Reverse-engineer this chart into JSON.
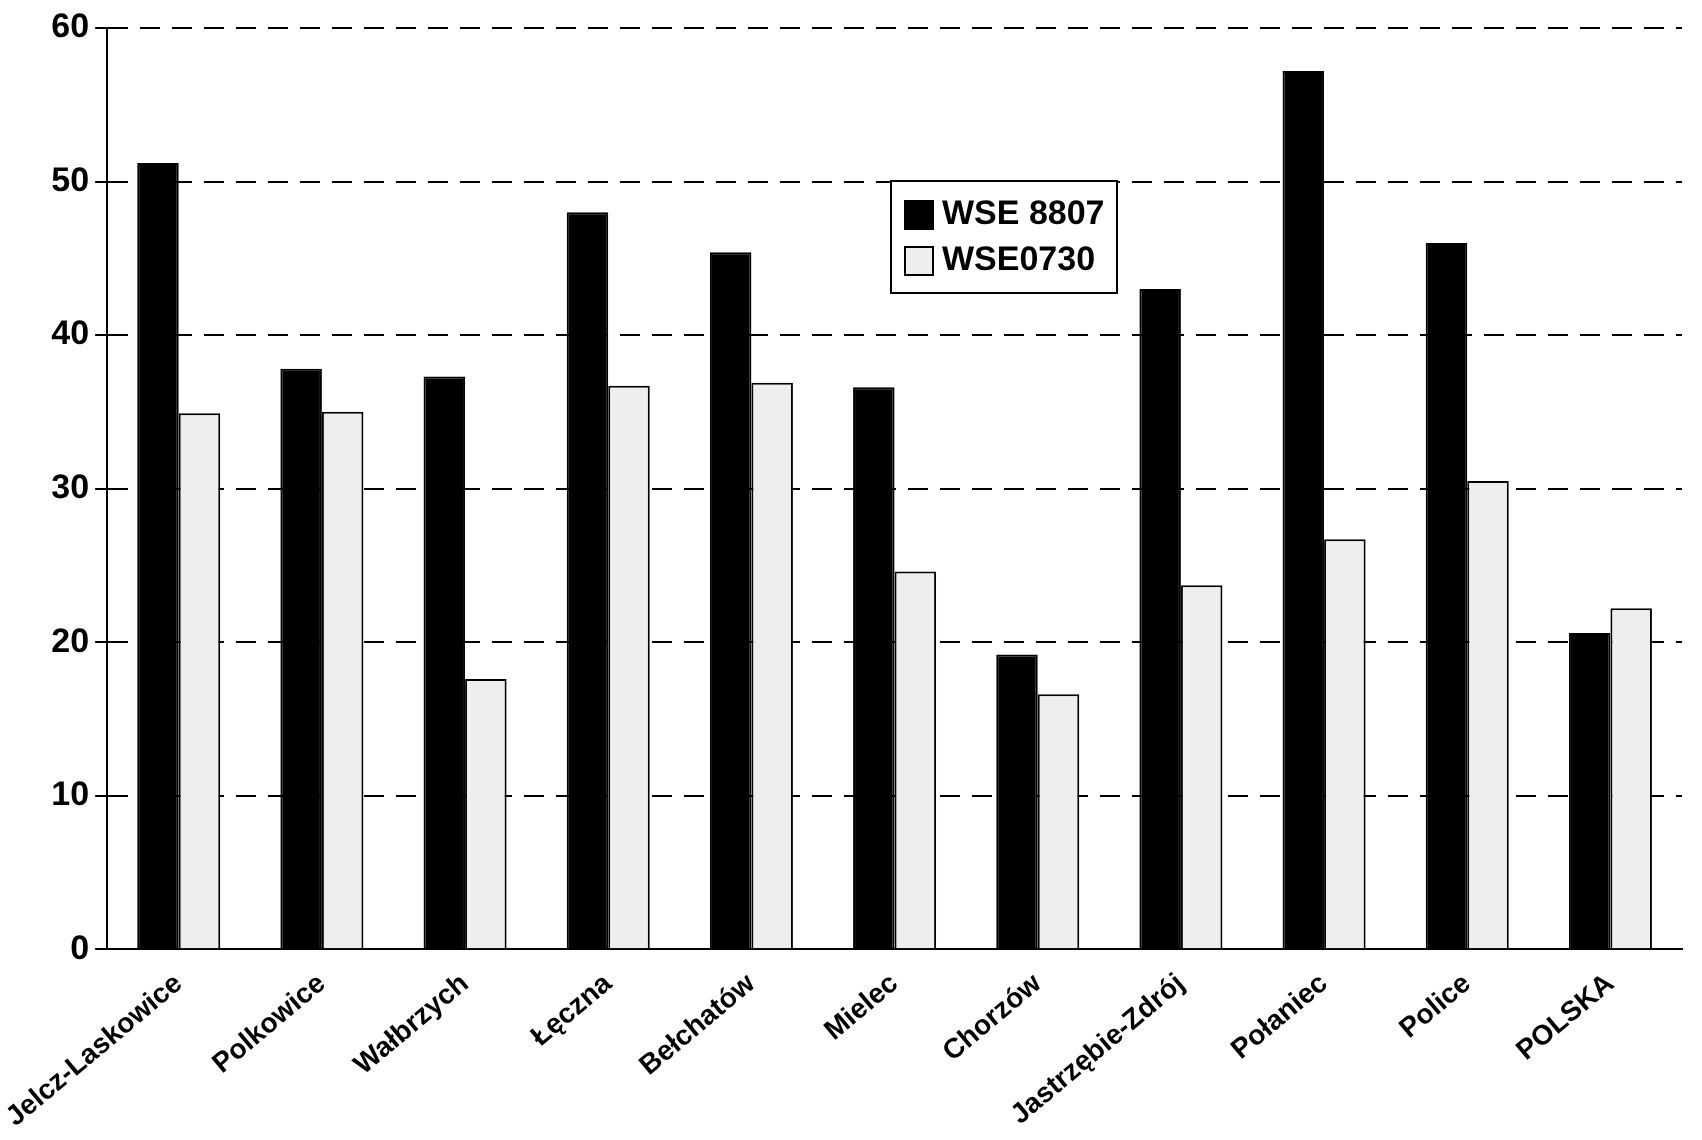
{
  "chart_data": {
    "type": "bar",
    "categories": [
      "Jelcz-Laskowice",
      "Polkowice",
      "Wałbrzych",
      "Łęczna",
      "Bełchatów",
      "Mielec",
      "Chorzów",
      "Jastrzębie-Zdrój",
      "Połaniec",
      "Police",
      "POLSKA"
    ],
    "series": [
      {
        "name": "WSE 8807",
        "color": "#000000",
        "values": [
          51.2,
          37.8,
          37.3,
          48.0,
          45.4,
          36.6,
          19.2,
          43.0,
          57.2,
          46.0,
          20.6
        ]
      },
      {
        "name": "WSE0730",
        "color": "#eeeeee",
        "values": [
          34.9,
          35.0,
          17.6,
          36.7,
          36.9,
          24.6,
          16.6,
          23.7,
          26.7,
          30.5,
          22.2
        ]
      }
    ],
    "ylim": [
      0,
      60
    ],
    "yticks": [
      0,
      10,
      20,
      30,
      40,
      50,
      60
    ],
    "grid": "y",
    "legend": "top"
  }
}
